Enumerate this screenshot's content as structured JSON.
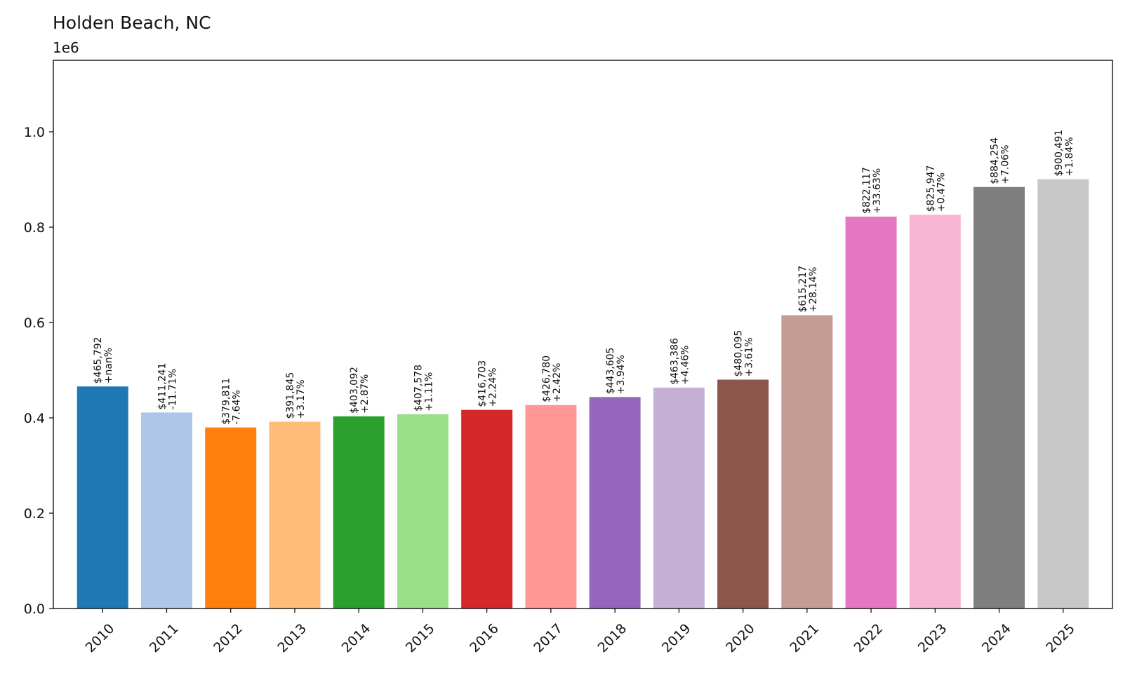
{
  "chart_data": {
    "type": "bar",
    "title": "Holden Beach, NC",
    "y_multiplier_label": "1e6",
    "xlabel": "",
    "ylabel": "",
    "ylim": [
      0,
      1150000
    ],
    "grid": false,
    "categories": [
      "2010",
      "2011",
      "2012",
      "2013",
      "2014",
      "2015",
      "2016",
      "2017",
      "2018",
      "2019",
      "2020",
      "2021",
      "2022",
      "2023",
      "2024",
      "2025"
    ],
    "values": [
      465792,
      411241,
      379811,
      391845,
      403092,
      407578,
      416703,
      426780,
      443605,
      463386,
      480095,
      615217,
      822117,
      825947,
      884254,
      900491
    ],
    "value_labels": [
      "$465,792",
      "$411,241",
      "$379,811",
      "$391,845",
      "$403,092",
      "$407,578",
      "$416,703",
      "$426,780",
      "$443,605",
      "$463,386",
      "$480,095",
      "$615,217",
      "$822,117",
      "$825,947",
      "$884,254",
      "$900,491"
    ],
    "change_labels": [
      "+nan%",
      "-11.71%",
      "-7.64%",
      "+3.17%",
      "+2.87%",
      "+1.11%",
      "+2.24%",
      "+2.42%",
      "+3.94%",
      "+4.46%",
      "+3.61%",
      "+28.14%",
      "+33.63%",
      "+0.47%",
      "+7.06%",
      "+1.84%"
    ],
    "colors": [
      "#1f77b4",
      "#aec7e8",
      "#ff7f0e",
      "#ffbb78",
      "#2ca02c",
      "#98df8a",
      "#d62728",
      "#ff9896",
      "#9467bd",
      "#c5b0d5",
      "#8c564b",
      "#c49c94",
      "#e377c2",
      "#f7b6d2",
      "#7f7f7f",
      "#c7c7c7"
    ],
    "y_ticks": [
      0,
      200000,
      400000,
      600000,
      800000,
      1000000
    ],
    "y_tick_labels": [
      "0.0",
      "0.2",
      "0.4",
      "0.6",
      "0.8",
      "1.0"
    ]
  }
}
